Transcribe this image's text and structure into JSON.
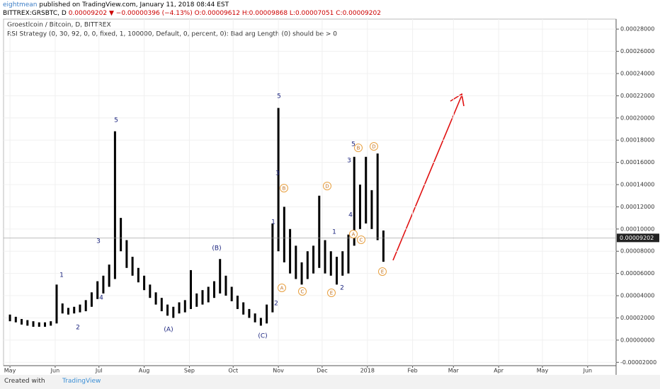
{
  "header": {
    "author": "eightmean",
    "published": "published on TradingView.com, January 11, 2018 08:44 EST",
    "symbol": "BITTREX:GRSBTC, D",
    "price": "0.00009202",
    "change": "−0.00000396 (−4.13%)",
    "open": "O:0.00009612",
    "high": "H:0.00009868",
    "low": "L:0.00007051",
    "close": "C:0.00009202"
  },
  "legend": {
    "title": "Groestlcoin / Bitcoin, D, BITTREX",
    "indicator": "RSI Strategy (0, 30, 92, 0, 0, fixed, 1, 100000, Default, 0, percent, 0): Bad arg Length (0) should be > 0"
  },
  "footer": {
    "created": "Created with",
    "brand": "TradingView"
  },
  "chart_data": {
    "type": "range",
    "x": [
      0,
      4,
      8,
      12,
      16,
      20,
      24,
      28,
      32,
      36,
      40,
      44,
      48,
      52,
      56,
      60,
      64,
      68,
      72,
      76,
      80,
      84,
      88,
      92,
      96,
      100,
      104,
      108,
      112,
      116,
      120,
      124,
      128,
      132,
      136,
      140,
      144,
      148,
      152,
      156,
      160,
      164,
      168,
      172,
      176,
      180,
      184,
      188,
      192,
      196,
      200,
      204,
      208,
      212,
      216,
      220,
      224,
      228,
      232,
      236,
      240,
      244,
      248,
      252,
      256
    ],
    "lows": [
      1.7e-05,
      1.6e-05,
      1.4e-05,
      1.3e-05,
      1.2e-05,
      1.2e-05,
      1.2e-05,
      1.3e-05,
      1.5e-05,
      2.4e-05,
      2.3e-05,
      2.4e-05,
      2.5e-05,
      2.6e-05,
      3e-05,
      3.7e-05,
      4.2e-05,
      4.8e-05,
      5.5e-05,
      8e-05,
      6.5e-05,
      5.8e-05,
      5.2e-05,
      4.5e-05,
      3.8e-05,
      3.2e-05,
      2.6e-05,
      2.2e-05,
      2e-05,
      2.4e-05,
      2.5e-05,
      2.8e-05,
      3e-05,
      3.2e-05,
      3.4e-05,
      3.8e-05,
      4.2e-05,
      4e-05,
      3.5e-05,
      2.8e-05,
      2.3e-05,
      2e-05,
      1.6e-05,
      1.3e-05,
      1.5e-05,
      2.5e-05,
      8e-05,
      7e-05,
      6e-05,
      5.5e-05,
      5e-05,
      5.5e-05,
      6e-05,
      6.5e-05,
      6e-05,
      5.8e-05,
      5e-05,
      5.8e-05,
      6e-05,
      8.5e-05,
      0.0001,
      0.000105,
      0.0001,
      9e-05,
      7.051e-05
    ],
    "highs": [
      2.3e-05,
      2.1e-05,
      1.9e-05,
      1.8e-05,
      1.7e-05,
      1.6e-05,
      1.6e-05,
      1.7e-05,
      5e-05,
      3.3e-05,
      2.9e-05,
      3e-05,
      3.2e-05,
      3.6e-05,
      4.3e-05,
      5.3e-05,
      5.8e-05,
      6.8e-05,
      0.000188,
      0.00011,
      9e-05,
      7.5e-05,
      6.5e-05,
      5.8e-05,
      5e-05,
      4.3e-05,
      3.8e-05,
      3.2e-05,
      3e-05,
      3.4e-05,
      3.6e-05,
      6.3e-05,
      4.2e-05,
      4.5e-05,
      4.8e-05,
      5.3e-05,
      7.3e-05,
      5.8e-05,
      4.8e-05,
      4e-05,
      3.4e-05,
      2.8e-05,
      2.4e-05,
      2e-05,
      3.2e-05,
      0.000105,
      0.000209,
      0.00012,
      0.0001,
      8.5e-05,
      7e-05,
      8e-05,
      8.5e-05,
      0.00013,
      9e-05,
      8e-05,
      7.5e-05,
      8e-05,
      9.5e-05,
      0.000165,
      0.00014,
      0.000165,
      0.000135,
      0.000168,
      9.868e-05
    ],
    "color": "#000000",
    "current": {
      "value": 9.202e-05,
      "label": "0.00009202"
    },
    "xlim": [
      -4.4,
      415.5
    ],
    "ylim": [
      -2.3e-05,
      0.000289
    ],
    "xticks": [
      {
        "value": 0,
        "label": "May"
      },
      {
        "value": 31,
        "label": "Jun"
      },
      {
        "value": 61,
        "label": "Jul"
      },
      {
        "value": 92,
        "label": "Aug"
      },
      {
        "value": 123,
        "label": "Sep"
      },
      {
        "value": 153,
        "label": "Oct"
      },
      {
        "value": 184,
        "label": "Nov"
      },
      {
        "value": 214,
        "label": "Dec"
      },
      {
        "value": 245,
        "label": "2018"
      },
      {
        "value": 276,
        "label": "Feb"
      },
      {
        "value": 304,
        "label": "Mar"
      },
      {
        "value": 335,
        "label": "Apr"
      },
      {
        "value": 365,
        "label": "May"
      },
      {
        "value": 396,
        "label": "Jun"
      }
    ],
    "yticks": [
      {
        "value": -2e-05,
        "label": "-0.00002000"
      },
      {
        "value": 0,
        "label": "0.00000000"
      },
      {
        "value": 2e-05,
        "label": "0.00002000"
      },
      {
        "value": 4e-05,
        "label": "0.00004000"
      },
      {
        "value": 6e-05,
        "label": "0.00006000"
      },
      {
        "value": 8e-05,
        "label": "0.00008000"
      },
      {
        "value": 0.0001,
        "label": "0.00010000"
      },
      {
        "value": 0.00012,
        "label": "0.00012000"
      },
      {
        "value": 0.00014,
        "label": "0.00014000"
      },
      {
        "value": 0.00016,
        "label": "0.00016000"
      },
      {
        "value": 0.00018,
        "label": "0.00018000"
      },
      {
        "value": 0.0002,
        "label": "0.00020000"
      },
      {
        "value": 0.00022,
        "label": "0.00022000"
      },
      {
        "value": 0.00024,
        "label": "0.00024000"
      },
      {
        "value": 0.00026,
        "label": "0.00026000"
      },
      {
        "value": 0.00028,
        "label": "0.00028000"
      }
    ],
    "grid": true,
    "annotations": [
      "1",
      "2",
      "3",
      "4",
      "5",
      "(A)",
      "(B)",
      "(C)",
      "1",
      "2",
      "3",
      "5",
      "1",
      "2",
      "3",
      "4",
      "5"
    ],
    "circled": [
      "A",
      "B",
      "C",
      "D",
      "E",
      "B",
      "D",
      "A",
      "C",
      "E"
    ]
  }
}
